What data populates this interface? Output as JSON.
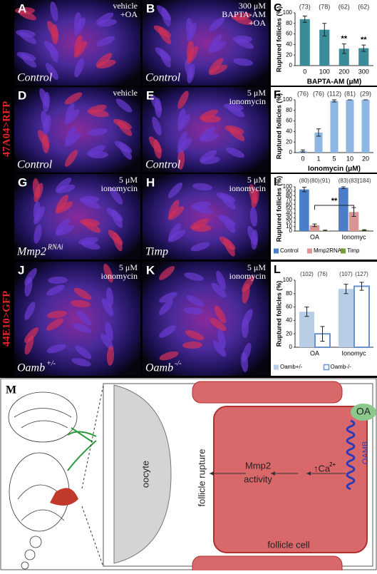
{
  "side_labels": [
    "47A04>RFP",
    "44E10>GFP"
  ],
  "image_panels": [
    {
      "letter": "A",
      "annotation": [
        "vehicle",
        "+OA"
      ],
      "caption": "Control"
    },
    {
      "letter": "B",
      "annotation": [
        "300 μM",
        "BAPTA-AM",
        "+OA"
      ],
      "caption": "Control"
    },
    {
      "letter": "D",
      "annotation": [
        "vehicle"
      ],
      "caption": "Control"
    },
    {
      "letter": "E",
      "annotation": [
        "5 μM",
        "ionomycin"
      ],
      "caption": "Control"
    },
    {
      "letter": "G",
      "annotation": [
        "5 μM",
        "ionomycin"
      ],
      "caption": "Mmp2",
      "caption_sup": "RNAi"
    },
    {
      "letter": "H",
      "annotation": [
        "5 μM",
        "ionomycin"
      ],
      "caption": "Timp"
    },
    {
      "letter": "J",
      "annotation": [
        "5 μM",
        "ionomycin"
      ],
      "caption": "Oamb",
      "caption_sup": "+/-"
    },
    {
      "letter": "K",
      "annotation": [
        "5 μM",
        "ionomycin"
      ],
      "caption": "Oamb",
      "caption_sup": "-/-"
    }
  ],
  "chart_data": [
    {
      "type": "bar",
      "panel_letter": "C",
      "ylabel": "Ruptured follicles (%)",
      "xlabel": "BAPTA-AM (μM)",
      "categories": [
        "0",
        "100",
        "200",
        "300"
      ],
      "values": [
        88,
        68,
        32,
        33
      ],
      "errors": [
        6,
        12,
        9,
        6
      ],
      "n_labels": [
        "(73)",
        "(78)",
        "(62)",
        "(62)"
      ],
      "significance": [
        null,
        null,
        "**",
        "**"
      ],
      "color": "#3a8c98",
      "ylim": [
        0,
        100
      ],
      "yticks": [
        0,
        20,
        40,
        60,
        80,
        100
      ]
    },
    {
      "type": "bar",
      "panel_letter": "F",
      "ylabel": "Ruptured follicles (%)",
      "xlabel": "Ionomycin (μM)",
      "categories": [
        "0",
        "1",
        "5",
        "10",
        "20"
      ],
      "values": [
        3,
        38,
        98,
        100,
        100
      ],
      "errors": [
        2,
        7,
        2,
        0,
        0
      ],
      "n_labels": [
        "(76)",
        "(76)",
        "(112)",
        "(81)",
        "(29)"
      ],
      "color": "#8db6e2",
      "ylim": [
        0,
        100
      ],
      "yticks": [
        0,
        20,
        40,
        60,
        80,
        100
      ]
    },
    {
      "type": "bar",
      "panel_letter": "I",
      "ylabel": "Ruptured follicles (%)",
      "significance": "**",
      "categories": [
        "OA",
        "Ionomyc"
      ],
      "series": [
        {
          "name": "Control",
          "color": "#4a7ec8",
          "values": [
            94,
            98
          ],
          "errors": [
            5,
            2
          ],
          "n_labels": [
            "(80)",
            "(83)"
          ]
        },
        {
          "name": "Mmp2RNAi",
          "color": "#d99494",
          "values": [
            13,
            43
          ],
          "errors": [
            3,
            10
          ],
          "n_labels": [
            "(80)",
            "(83)"
          ]
        },
        {
          "name": "Timp",
          "color": "#7c9a3c",
          "values": [
            1,
            2
          ],
          "errors": [
            1,
            1
          ],
          "n_labels": [
            "(91)",
            "(184)"
          ]
        }
      ],
      "ylim": [
        0,
        100
      ],
      "yticks": [
        0,
        10,
        20,
        30,
        40,
        50,
        60,
        70,
        80,
        90,
        100
      ]
    },
    {
      "type": "bar",
      "panel_letter": "L",
      "ylabel": "Ruptured follicles (%)",
      "categories": [
        "OA",
        "Ionomyc"
      ],
      "series": [
        {
          "name": "Oamb+/-",
          "color": "#b8cde6",
          "values": [
            53,
            87
          ],
          "errors": [
            7,
            7
          ],
          "n_labels": [
            "(102)",
            "(107)"
          ]
        },
        {
          "name": "Oamb-/-",
          "color": "#6a92ca",
          "outline": true,
          "values": [
            20,
            91
          ],
          "errors": [
            11,
            6
          ],
          "n_labels": [
            "(76)",
            "(127)"
          ]
        }
      ],
      "ylim": [
        0,
        100
      ],
      "yticks": [
        0,
        20,
        40,
        60,
        80,
        100
      ]
    }
  ],
  "diagram": {
    "letter": "M",
    "oocyte": "oocyte",
    "rupture": "follicle rupture",
    "mmp2": "Mmp2",
    "activity": "activity",
    "ca": "↑Ca",
    "ca_sup": "2+",
    "oa": "OA",
    "oamb": "OAMB",
    "cell": "follicle cell"
  }
}
